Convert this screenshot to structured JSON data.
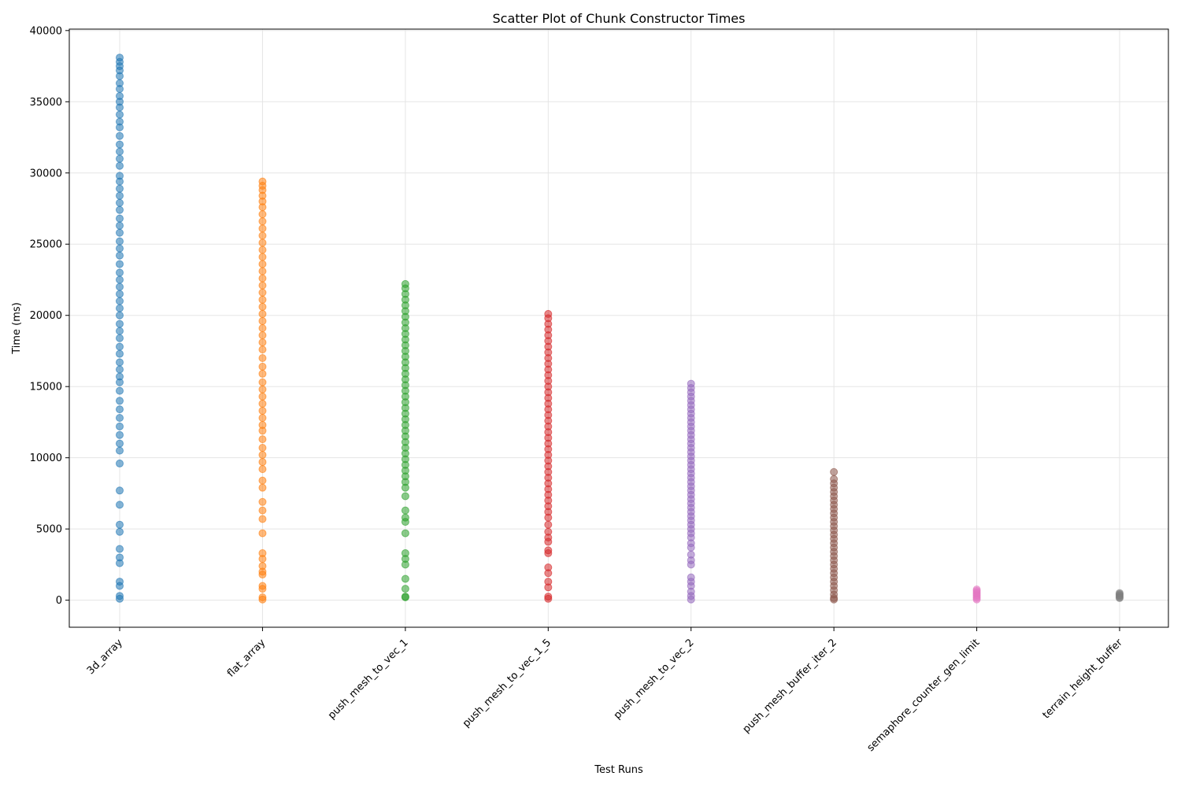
{
  "chart_data": {
    "type": "strip",
    "title": "Scatter Plot of Chunk Constructor Times",
    "x_label": "Test Runs",
    "y_label": "Time (ms)",
    "categories": [
      "3d_array",
      "flat_array",
      "push_mesh_to_vec_1",
      "push_mesh_to_vec_1_5",
      "push_mesh_to_vec_2",
      "push_mesh_buffer_iter_2",
      "semaphore_counter_gen_limit",
      "terrain_height_buffer"
    ],
    "colors": [
      "#1f77b4",
      "#ff7f0e",
      "#2ca02c",
      "#d62728",
      "#9467bd",
      "#8c564b",
      "#e377c2",
      "#7f7f7f"
    ],
    "values": [
      [
        38100,
        37800,
        37500,
        37200,
        36800,
        36300,
        35900,
        35400,
        35000,
        34600,
        34100,
        33600,
        33200,
        32600,
        32000,
        31500,
        31000,
        30500,
        29800,
        29400,
        28900,
        28400,
        27900,
        27400,
        26800,
        26300,
        25800,
        25200,
        24700,
        24200,
        23600,
        23000,
        22500,
        22000,
        21500,
        21000,
        20500,
        20000,
        19400,
        18900,
        18400,
        17800,
        17300,
        16700,
        16200,
        15700,
        15300,
        14700,
        14000,
        13400,
        12800,
        12200,
        11600,
        11000,
        10500,
        9600,
        7700,
        6700,
        5300,
        4800,
        3600,
        3000,
        2600,
        1300,
        1000,
        300,
        100
      ],
      [
        29400,
        29100,
        28800,
        28400,
        28000,
        27600,
        27100,
        26600,
        26100,
        25600,
        25100,
        24600,
        24100,
        23600,
        23100,
        22600,
        22100,
        21600,
        21100,
        20600,
        20100,
        19600,
        19100,
        18600,
        18100,
        17600,
        17000,
        16400,
        15900,
        15300,
        14800,
        14300,
        13800,
        13300,
        12800,
        12300,
        11900,
        11300,
        10700,
        10200,
        9700,
        9200,
        8400,
        7900,
        6900,
        6300,
        5700,
        4700,
        3300,
        2900,
        2400,
        2000,
        1800,
        1000,
        800,
        200,
        50
      ],
      [
        22200,
        21900,
        21500,
        21100,
        20700,
        20300,
        19900,
        19500,
        19100,
        18700,
        18300,
        17900,
        17500,
        17100,
        16700,
        16300,
        15900,
        15500,
        15100,
        14700,
        14300,
        13900,
        13500,
        13100,
        12700,
        12300,
        11900,
        11500,
        11100,
        10700,
        10300,
        9900,
        9500,
        9100,
        8700,
        8300,
        7900,
        7300,
        6300,
        5800,
        5500,
        4700,
        3300,
        2900,
        2500,
        1500,
        800,
        250,
        200
      ],
      [
        20100,
        19800,
        19400,
        19000,
        18600,
        18200,
        17800,
        17400,
        17000,
        16600,
        16200,
        15800,
        15400,
        15000,
        14600,
        14200,
        13800,
        13400,
        13000,
        12600,
        12200,
        11800,
        11400,
        11000,
        10600,
        10200,
        9800,
        9400,
        9000,
        8600,
        8200,
        7800,
        7400,
        7000,
        6600,
        6200,
        5800,
        5300,
        4800,
        4400,
        4100,
        3500,
        3300,
        2300,
        1900,
        1300,
        900,
        250,
        100
      ],
      [
        15200,
        14900,
        14600,
        14300,
        14000,
        13700,
        13400,
        13100,
        12800,
        12500,
        12200,
        11900,
        11600,
        11300,
        11000,
        10700,
        10400,
        10100,
        9800,
        9500,
        9200,
        8900,
        8600,
        8300,
        8000,
        7700,
        7400,
        7100,
        6800,
        6500,
        6200,
        5900,
        5600,
        5300,
        5000,
        4700,
        4400,
        4000,
        3700,
        3200,
        2800,
        2500,
        1600,
        1300,
        1000,
        600,
        300,
        50
      ],
      [
        9000,
        8500,
        8200,
        7900,
        7600,
        7300,
        7000,
        6700,
        6400,
        6100,
        5800,
        5500,
        5200,
        4900,
        4600,
        4300,
        4000,
        3700,
        3400,
        3100,
        2800,
        2500,
        2200,
        1900,
        1600,
        1300,
        1000,
        700,
        400,
        150,
        50
      ],
      [
        750,
        650,
        550,
        450,
        350,
        250,
        150,
        50
      ],
      [
        500,
        420,
        350,
        280,
        200,
        150
      ]
    ],
    "ylim": [
      -1900,
      40100
    ],
    "yticks": [
      0,
      5000,
      10000,
      15000,
      20000,
      25000,
      30000,
      35000,
      40000
    ],
    "grid": true
  }
}
